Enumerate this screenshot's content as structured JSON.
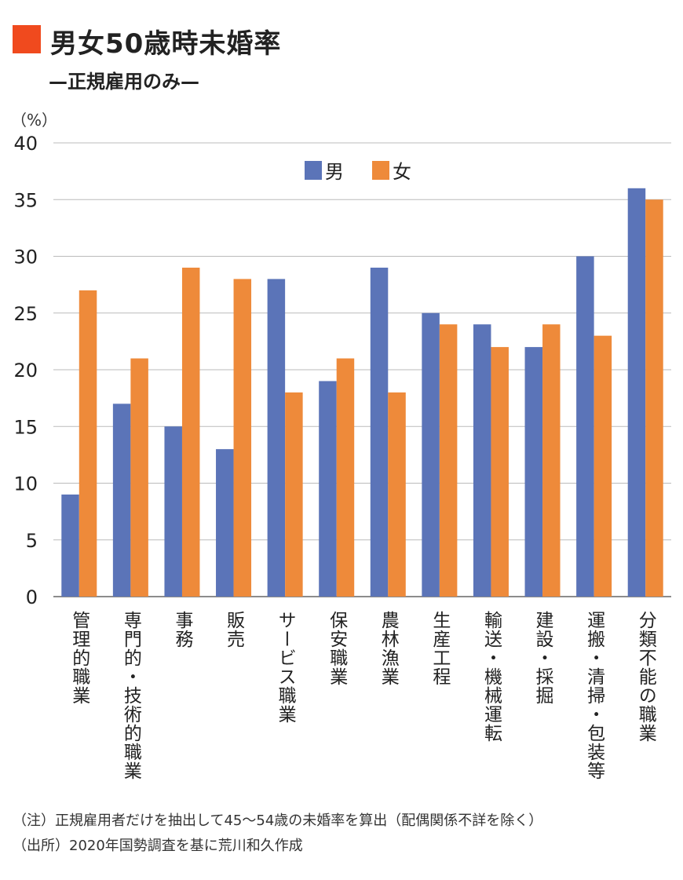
{
  "title": "男女50歳時未婚率",
  "subtitle": "—正規雇用のみ—",
  "notes": [
    "（注）正規雇用者だけを抽出して45〜54歳の未婚率を算出（配偶関係不詳を除く）",
    "（出所）2020年国勢調査を基に荒川和久作成"
  ],
  "colors": {
    "title_square": "#f04a1e",
    "male": "#5b74b8",
    "female": "#ee8a3a"
  },
  "chart_data": {
    "type": "bar",
    "ylabel": "（%）",
    "ylim": [
      0,
      40
    ],
    "yticks": [
      0,
      5,
      10,
      15,
      20,
      25,
      30,
      35,
      40
    ],
    "grid": true,
    "legend": "top-center",
    "categories": [
      "管理的職業",
      "専門的・技術的職業",
      "事務",
      "販売",
      "サービス職業",
      "保安職業",
      "農林漁業",
      "生産工程",
      "輸送・機械運転",
      "建設・採掘",
      "運搬・清掃・包装等",
      "分類不能の職業"
    ],
    "series": [
      {
        "name": "男",
        "color": "#5b74b8",
        "values": [
          9,
          17,
          15,
          13,
          28,
          19,
          29,
          25,
          24,
          22,
          30,
          36
        ]
      },
      {
        "name": "女",
        "color": "#ee8a3a",
        "values": [
          27,
          21,
          29,
          28,
          18,
          21,
          18,
          24,
          22,
          24,
          23,
          35
        ]
      }
    ]
  }
}
